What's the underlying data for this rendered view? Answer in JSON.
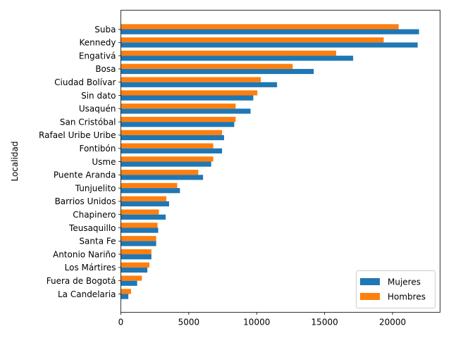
{
  "chart_data": {
    "type": "bar",
    "orientation": "horizontal",
    "title": "",
    "xlabel": "",
    "ylabel": "Localidad",
    "xlim": [
      0,
      23500
    ],
    "xticks": [
      0,
      5000,
      10000,
      15000,
      20000
    ],
    "xtick_labels": [
      "0",
      "5000",
      "10000",
      "15000",
      "20000"
    ],
    "grid": false,
    "legend_position": "lower right",
    "categories": [
      "Suba",
      "Kennedy",
      "Engativá",
      "Bosa",
      "Ciudad Bolívar",
      "Sin dato",
      "Usaquén",
      "San Cristóbal",
      "Rafael Uribe Uribe",
      "Fontibón",
      "Usme",
      "Puente Aranda",
      "Tunjuelito",
      "Barrios Unidos",
      "Chapinero",
      "Teusaquillo",
      "Santa Fe",
      "Antonio Nariño",
      "Los Mártires",
      "Fuera de Bogotá",
      "La Candelaria"
    ],
    "series": [
      {
        "name": "Mujeres",
        "color": "#1f77b4",
        "values": [
          21950,
          21850,
          17100,
          14200,
          11500,
          9750,
          9550,
          8350,
          7600,
          7450,
          6650,
          6050,
          4350,
          3550,
          3300,
          2750,
          2600,
          2250,
          1950,
          1200,
          550
        ]
      },
      {
        "name": "Hombres",
        "color": "#ff7f0e",
        "values": [
          20450,
          19350,
          15850,
          12650,
          10300,
          10050,
          8450,
          8450,
          7450,
          6800,
          6800,
          5700,
          4150,
          3350,
          2800,
          2700,
          2600,
          2250,
          2100,
          1550,
          750
        ]
      }
    ]
  }
}
